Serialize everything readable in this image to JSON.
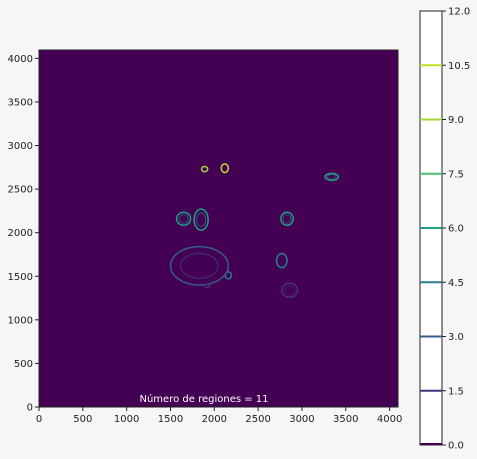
{
  "chart_data": {
    "type": "contour",
    "title": "",
    "xlabel": "",
    "ylabel": "",
    "xlim": [
      0,
      4096
    ],
    "ylim": [
      0,
      4096
    ],
    "x_ticks": [
      0,
      500,
      1000,
      1500,
      2000,
      2500,
      3000,
      3500,
      4000
    ],
    "y_ticks": [
      0,
      500,
      1000,
      1500,
      2000,
      2500,
      3000,
      3500,
      4000
    ],
    "background_color": "#440154",
    "annotation": "Número de regiones = 11",
    "colorbar": {
      "levels": [
        0.0,
        1.5,
        3.0,
        4.5,
        6.0,
        7.5,
        9.0,
        10.5,
        12.0
      ],
      "labels": [
        "0.0",
        "1.5",
        "3.0",
        "4.5",
        "6.0",
        "7.5",
        "9.0",
        "10.5",
        "12.0"
      ],
      "colors": [
        "#440154",
        "#46327e",
        "#365c8d",
        "#277f8e",
        "#1fa187",
        "#4ac16d",
        "#a0da39",
        "#bddf26",
        "#fde725"
      ]
    },
    "regions": [
      {
        "x": 1890,
        "y": 2730,
        "rx": 35,
        "ry": 30,
        "level": 9.0
      },
      {
        "x": 2120,
        "y": 2740,
        "rx": 40,
        "ry": 50,
        "level": 10.5
      },
      {
        "x": 3340,
        "y": 2640,
        "rx": 75,
        "ry": 40,
        "level": 6.0
      },
      {
        "x": 1650,
        "y": 2160,
        "rx": 80,
        "ry": 75,
        "level": 6.0
      },
      {
        "x": 1850,
        "y": 2150,
        "rx": 80,
        "ry": 120,
        "level": 6.0
      },
      {
        "x": 2830,
        "y": 2160,
        "rx": 70,
        "ry": 75,
        "level": 6.0
      },
      {
        "x": 2770,
        "y": 1680,
        "rx": 60,
        "ry": 80,
        "level": 4.5
      },
      {
        "x": 2160,
        "y": 1510,
        "rx": 35,
        "ry": 40,
        "level": 4.5
      },
      {
        "x": 1830,
        "y": 1620,
        "rx": 330,
        "ry": 220,
        "level": 3.0
      },
      {
        "x": 2860,
        "y": 1340,
        "rx": 90,
        "ry": 80,
        "level": 1.5
      },
      {
        "x": 1920,
        "y": 1390,
        "rx": 25,
        "ry": 20,
        "level": 1.5
      }
    ]
  }
}
